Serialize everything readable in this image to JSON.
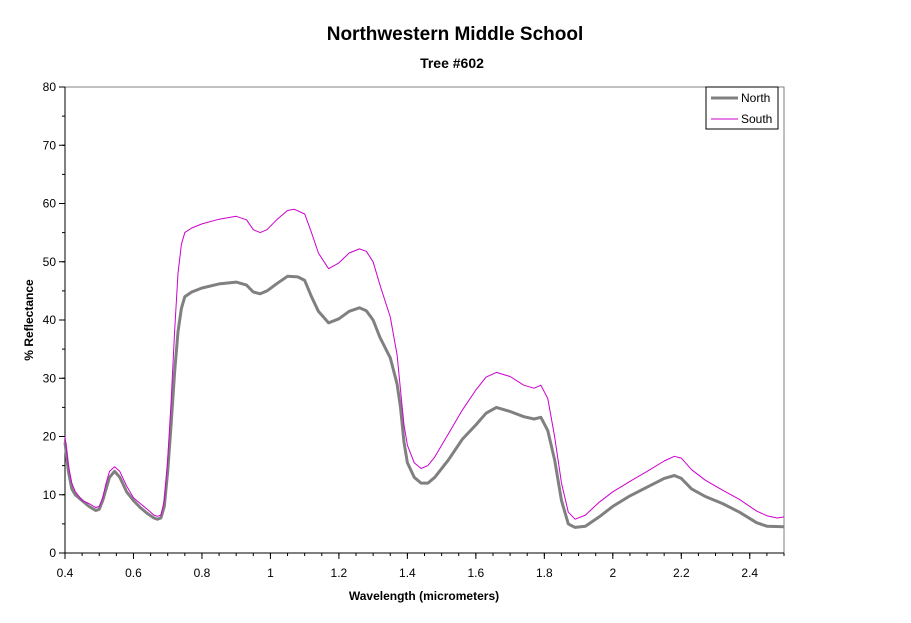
{
  "chart_data": {
    "type": "line",
    "title": "Northwestern Middle School",
    "subtitle": "Tree #602",
    "xlabel": "Wavelength (micrometers)",
    "ylabel": "% Reflectance",
    "xlim": [
      0.4,
      2.5
    ],
    "ylim": [
      0,
      80
    ],
    "x_ticks": [
      0.4,
      0.6,
      0.8,
      1,
      1.2,
      1.4,
      1.6,
      1.8,
      2,
      2.2,
      2.4
    ],
    "x_tick_labels": [
      "0.4",
      "0.6",
      "0.8",
      "1",
      "1.2",
      "1.4",
      "1.6",
      "1.8",
      "2",
      "2.2",
      "2.4"
    ],
    "y_ticks": [
      0,
      10,
      20,
      30,
      40,
      50,
      60,
      70,
      80
    ],
    "y_tick_labels": [
      "0",
      "10",
      "20",
      "30",
      "40",
      "50",
      "60",
      "70",
      "80"
    ],
    "grid": false,
    "legend_position": "top-right",
    "series": [
      {
        "name": "North",
        "color": "#808080",
        "points": [
          [
            0.4,
            19.0
          ],
          [
            0.41,
            14.0
          ],
          [
            0.42,
            11.0
          ],
          [
            0.43,
            10.0
          ],
          [
            0.44,
            9.5
          ],
          [
            0.45,
            9.0
          ],
          [
            0.47,
            8.0
          ],
          [
            0.49,
            7.3
          ],
          [
            0.5,
            7.5
          ],
          [
            0.51,
            9.0
          ],
          [
            0.52,
            11.0
          ],
          [
            0.53,
            13.0
          ],
          [
            0.545,
            14.0
          ],
          [
            0.56,
            13.0
          ],
          [
            0.58,
            10.5
          ],
          [
            0.6,
            9.0
          ],
          [
            0.62,
            7.8
          ],
          [
            0.64,
            6.8
          ],
          [
            0.66,
            6.0
          ],
          [
            0.67,
            5.8
          ],
          [
            0.68,
            6.0
          ],
          [
            0.69,
            8.0
          ],
          [
            0.7,
            14.0
          ],
          [
            0.71,
            22.0
          ],
          [
            0.72,
            31.0
          ],
          [
            0.73,
            38.0
          ],
          [
            0.74,
            42.0
          ],
          [
            0.75,
            44.0
          ],
          [
            0.77,
            44.8
          ],
          [
            0.8,
            45.5
          ],
          [
            0.85,
            46.2
          ],
          [
            0.9,
            46.5
          ],
          [
            0.93,
            46.0
          ],
          [
            0.95,
            44.8
          ],
          [
            0.97,
            44.5
          ],
          [
            0.99,
            45.0
          ],
          [
            1.02,
            46.3
          ],
          [
            1.05,
            47.5
          ],
          [
            1.08,
            47.4
          ],
          [
            1.1,
            46.8
          ],
          [
            1.12,
            44.0
          ],
          [
            1.14,
            41.5
          ],
          [
            1.17,
            39.5
          ],
          [
            1.2,
            40.2
          ],
          [
            1.23,
            41.5
          ],
          [
            1.26,
            42.1
          ],
          [
            1.28,
            41.6
          ],
          [
            1.3,
            40.0
          ],
          [
            1.32,
            37.0
          ],
          [
            1.35,
            33.5
          ],
          [
            1.37,
            29.0
          ],
          [
            1.38,
            25.0
          ],
          [
            1.39,
            19.0
          ],
          [
            1.4,
            15.5
          ],
          [
            1.42,
            13.0
          ],
          [
            1.44,
            12.0
          ],
          [
            1.46,
            12.0
          ],
          [
            1.48,
            13.0
          ],
          [
            1.52,
            16.0
          ],
          [
            1.56,
            19.5
          ],
          [
            1.6,
            22.0
          ],
          [
            1.63,
            24.0
          ],
          [
            1.66,
            25.0
          ],
          [
            1.7,
            24.3
          ],
          [
            1.74,
            23.4
          ],
          [
            1.77,
            23.0
          ],
          [
            1.79,
            23.3
          ],
          [
            1.81,
            21.0
          ],
          [
            1.83,
            16.0
          ],
          [
            1.85,
            9.0
          ],
          [
            1.87,
            5.0
          ],
          [
            1.89,
            4.4
          ],
          [
            1.92,
            4.6
          ],
          [
            1.96,
            6.2
          ],
          [
            2.0,
            8.0
          ],
          [
            2.05,
            9.8
          ],
          [
            2.1,
            11.3
          ],
          [
            2.15,
            12.8
          ],
          [
            2.18,
            13.3
          ],
          [
            2.2,
            12.8
          ],
          [
            2.23,
            11.0
          ],
          [
            2.27,
            9.7
          ],
          [
            2.32,
            8.5
          ],
          [
            2.37,
            7.0
          ],
          [
            2.42,
            5.2
          ],
          [
            2.45,
            4.6
          ],
          [
            2.5,
            4.5
          ]
        ]
      },
      {
        "name": "South",
        "color": "#cc00cc",
        "points": [
          [
            0.4,
            20.0
          ],
          [
            0.41,
            15.0
          ],
          [
            0.42,
            12.0
          ],
          [
            0.43,
            10.5
          ],
          [
            0.44,
            9.8
          ],
          [
            0.45,
            9.0
          ],
          [
            0.47,
            8.5
          ],
          [
            0.49,
            7.8
          ],
          [
            0.5,
            8.0
          ],
          [
            0.51,
            9.5
          ],
          [
            0.52,
            12.0
          ],
          [
            0.53,
            14.0
          ],
          [
            0.545,
            14.8
          ],
          [
            0.56,
            14.0
          ],
          [
            0.58,
            11.5
          ],
          [
            0.6,
            9.5
          ],
          [
            0.62,
            8.5
          ],
          [
            0.64,
            7.5
          ],
          [
            0.66,
            6.5
          ],
          [
            0.67,
            6.3
          ],
          [
            0.68,
            6.5
          ],
          [
            0.69,
            9.0
          ],
          [
            0.7,
            16.0
          ],
          [
            0.71,
            26.0
          ],
          [
            0.72,
            38.0
          ],
          [
            0.73,
            48.0
          ],
          [
            0.74,
            53.0
          ],
          [
            0.75,
            55.0
          ],
          [
            0.77,
            55.8
          ],
          [
            0.8,
            56.5
          ],
          [
            0.85,
            57.3
          ],
          [
            0.9,
            57.8
          ],
          [
            0.93,
            57.2
          ],
          [
            0.95,
            55.5
          ],
          [
            0.97,
            55.0
          ],
          [
            0.99,
            55.5
          ],
          [
            1.02,
            57.3
          ],
          [
            1.05,
            58.8
          ],
          [
            1.07,
            59.0
          ],
          [
            1.1,
            58.2
          ],
          [
            1.12,
            55.0
          ],
          [
            1.14,
            51.5
          ],
          [
            1.17,
            48.8
          ],
          [
            1.2,
            49.8
          ],
          [
            1.23,
            51.5
          ],
          [
            1.26,
            52.2
          ],
          [
            1.28,
            51.8
          ],
          [
            1.3,
            50.0
          ],
          [
            1.32,
            46.0
          ],
          [
            1.35,
            40.5
          ],
          [
            1.37,
            34.0
          ],
          [
            1.38,
            28.0
          ],
          [
            1.39,
            22.0
          ],
          [
            1.4,
            18.5
          ],
          [
            1.42,
            15.5
          ],
          [
            1.44,
            14.5
          ],
          [
            1.46,
            15.0
          ],
          [
            1.48,
            16.5
          ],
          [
            1.52,
            20.5
          ],
          [
            1.56,
            24.5
          ],
          [
            1.6,
            28.0
          ],
          [
            1.63,
            30.2
          ],
          [
            1.66,
            31.0
          ],
          [
            1.7,
            30.3
          ],
          [
            1.74,
            28.8
          ],
          [
            1.77,
            28.3
          ],
          [
            1.79,
            28.8
          ],
          [
            1.81,
            26.5
          ],
          [
            1.83,
            20.0
          ],
          [
            1.85,
            12.0
          ],
          [
            1.87,
            7.0
          ],
          [
            1.89,
            5.8
          ],
          [
            1.92,
            6.5
          ],
          [
            1.96,
            8.7
          ],
          [
            2.0,
            10.5
          ],
          [
            2.05,
            12.3
          ],
          [
            2.1,
            14.0
          ],
          [
            2.15,
            15.8
          ],
          [
            2.18,
            16.6
          ],
          [
            2.2,
            16.3
          ],
          [
            2.23,
            14.3
          ],
          [
            2.27,
            12.5
          ],
          [
            2.32,
            10.8
          ],
          [
            2.37,
            9.2
          ],
          [
            2.42,
            7.2
          ],
          [
            2.45,
            6.4
          ],
          [
            2.48,
            6.0
          ],
          [
            2.5,
            6.2
          ]
        ]
      }
    ]
  }
}
